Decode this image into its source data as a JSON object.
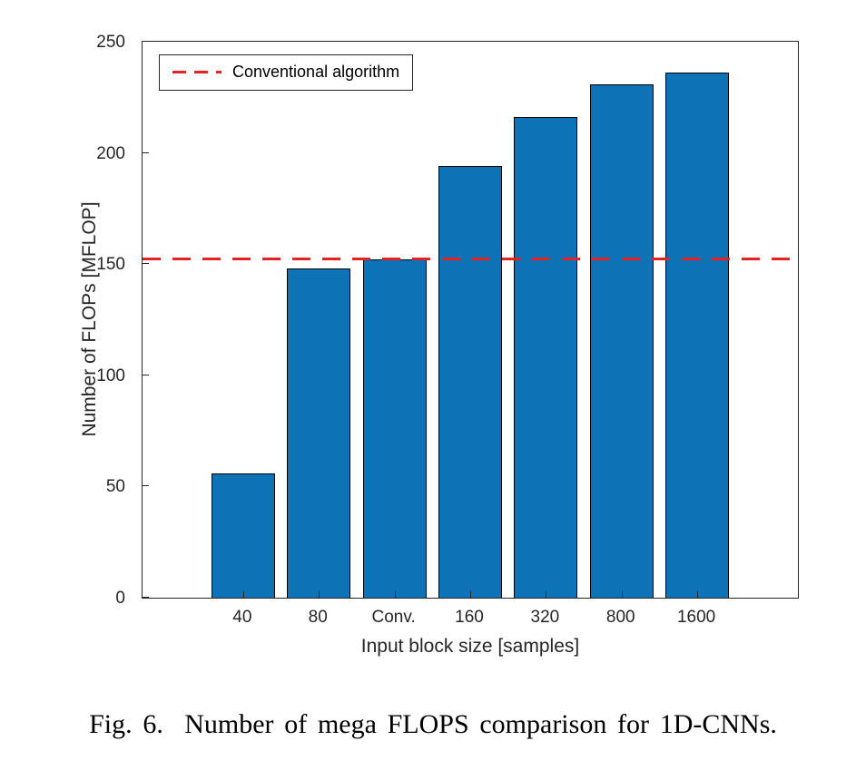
{
  "page": {
    "background": "#ffffff"
  },
  "figure": {
    "caption": "Fig. 6.  Number of mega FLOPS comparison for 1D-CNNs."
  },
  "chart_data": {
    "type": "bar",
    "title": "",
    "xlabel": "Input block size [samples]",
    "ylabel": "Number of FLOPs [MFLOP]",
    "categories": [
      "40",
      "80",
      "Conv.",
      "160",
      "320",
      "800",
      "1600"
    ],
    "values": [
      56,
      148,
      152,
      194,
      216,
      231,
      236
    ],
    "ylim": [
      0,
      250
    ],
    "yticks": [
      0,
      50,
      100,
      150,
      200,
      250
    ],
    "grid": false,
    "refline": {
      "value": 152.5,
      "label": "Conventional algorithm",
      "style": "dashed",
      "color": "#e32222"
    },
    "legend": {
      "position": "top-left",
      "entries": [
        "Conventional algorithm"
      ]
    },
    "colors": {
      "bar_fill": "#0d72b6",
      "bar_edge": "#000000",
      "axis": "#262626"
    }
  }
}
